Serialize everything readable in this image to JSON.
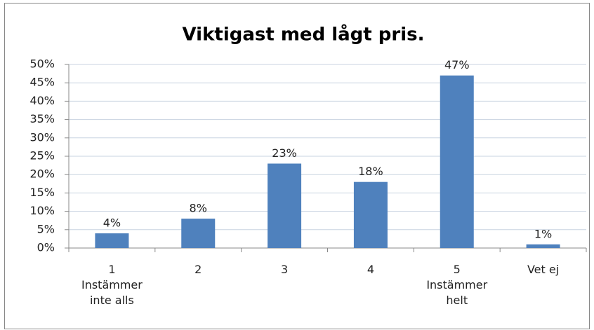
{
  "chart_data": {
    "type": "bar",
    "title": "Viktigast med lågt pris.",
    "categories": [
      "1\nInstämmer\ninte alls",
      "2",
      "3",
      "4",
      "5\nInstämmer\nhelt",
      "Vet ej"
    ],
    "values": [
      4,
      8,
      23,
      18,
      47,
      1
    ],
    "value_labels": [
      "4%",
      "8%",
      "23%",
      "18%",
      "47%",
      "1%"
    ],
    "color": "#4f81bd",
    "ylim": [
      0,
      50
    ],
    "yticks": [
      {
        "value": 0,
        "label": "0%"
      },
      {
        "value": 5,
        "label": "5%"
      },
      {
        "value": 10,
        "label": "10%"
      },
      {
        "value": 15,
        "label": "15%"
      },
      {
        "value": 20,
        "label": "20%"
      },
      {
        "value": 25,
        "label": "25%"
      },
      {
        "value": 30,
        "label": "30%"
      },
      {
        "value": 35,
        "label": "35%"
      },
      {
        "value": 40,
        "label": "40%"
      },
      {
        "value": 45,
        "label": "45%"
      },
      {
        "value": 50,
        "label": "50%"
      }
    ],
    "grid": true
  }
}
